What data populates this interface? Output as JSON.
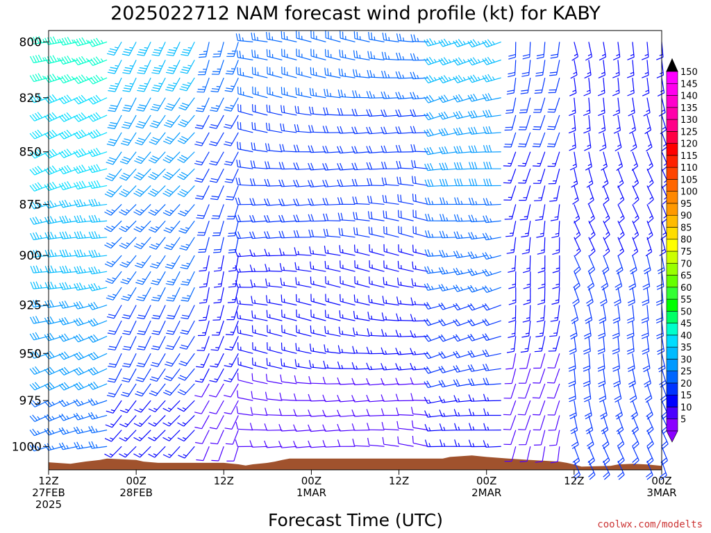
{
  "chart_data": {
    "type": "wind-barb-profile",
    "title": "2025022712 NAM forecast wind profile (kt) for KABY",
    "xlabel": "Forecast Time (UTC)",
    "ylabel": "",
    "y_axis": {
      "scale": "pressure-reversed",
      "range_hpa": [
        1013,
        795
      ],
      "ticks": [
        "800",
        "825",
        "850",
        "875",
        "900",
        "925",
        "950",
        "975",
        "1000"
      ]
    },
    "x_axis": {
      "range_hours": [
        0,
        84
      ],
      "ticks": [
        {
          "hour": 0,
          "lines": [
            "12Z",
            "27FEB",
            "2025"
          ]
        },
        {
          "hour": 12,
          "lines": [
            "00Z",
            "28FEB"
          ]
        },
        {
          "hour": 24,
          "lines": [
            "12Z"
          ]
        },
        {
          "hour": 36,
          "lines": [
            "00Z",
            "1MAR"
          ]
        },
        {
          "hour": 48,
          "lines": [
            "12Z"
          ]
        },
        {
          "hour": 60,
          "lines": [
            "00Z",
            "2MAR"
          ]
        },
        {
          "hour": 72,
          "lines": [
            "12Z"
          ]
        },
        {
          "hour": 84,
          "lines": [
            "00Z",
            "3MAR"
          ]
        }
      ]
    },
    "barb_levels_hpa": [
      800,
      808,
      816,
      825,
      833,
      841,
      850,
      858,
      866,
      875,
      883,
      891,
      900,
      908,
      916,
      925,
      933,
      941,
      950,
      958,
      966,
      975,
      983,
      991,
      1000,
      1008
    ],
    "barb_times_hours": [
      0,
      2,
      4,
      6,
      8,
      10,
      12,
      14,
      16,
      18,
      20,
      22,
      24,
      26,
      28,
      30,
      32,
      34,
      36,
      38,
      40,
      42,
      44,
      46,
      48,
      50,
      52,
      54,
      56,
      58,
      60,
      62,
      64,
      66,
      68,
      70,
      72,
      74,
      76,
      78,
      80,
      82,
      84
    ],
    "wind_regimes": [
      {
        "hours": [
          0,
          10
        ],
        "direction_deg": 255,
        "speed_kt_top": 45,
        "speed_kt_bottom": 25
      },
      {
        "hours": [
          10,
          22
        ],
        "direction_deg": 215,
        "speed_kt_top": 35,
        "speed_kt_bottom": 15
      },
      {
        "hours": [
          22,
          28
        ],
        "direction_deg": 200,
        "speed_kt_top": 25,
        "speed_kt_bottom": 10
      },
      {
        "hours": [
          28,
          54
        ],
        "direction_deg": 275,
        "speed_kt_top": 25,
        "speed_kt_bottom": 10
      },
      {
        "hours": [
          54,
          64
        ],
        "direction_deg": 260,
        "speed_kt_top": 35,
        "speed_kt_bottom": 15
      },
      {
        "hours": [
          64,
          72
        ],
        "direction_deg": 190,
        "speed_kt_top": 20,
        "speed_kt_bottom": 10
      },
      {
        "hours": [
          72,
          84
        ],
        "direction_deg": 165,
        "speed_kt_top": 15,
        "speed_kt_bottom": 20
      }
    ],
    "surface_pressure_hpa": [
      [
        0,
        1008.8
      ],
      [
        3,
        1009.6
      ],
      [
        5,
        1008.4
      ],
      [
        7,
        1007.5
      ],
      [
        8,
        1006.7
      ],
      [
        12,
        1007.5
      ],
      [
        13,
        1008.4
      ],
      [
        15,
        1009.1
      ],
      [
        24,
        1009.1
      ],
      [
        26,
        1009.9
      ],
      [
        27,
        1010.6
      ],
      [
        28,
        1009.9
      ],
      [
        30,
        1009.1
      ],
      [
        31,
        1008.4
      ],
      [
        32,
        1007.5
      ],
      [
        33,
        1006.7
      ],
      [
        36,
        1006.7
      ],
      [
        54,
        1006.7
      ],
      [
        55,
        1005.8
      ],
      [
        58,
        1005.0
      ],
      [
        60,
        1005.8
      ],
      [
        63,
        1006.7
      ],
      [
        66,
        1007.5
      ],
      [
        70,
        1008.4
      ],
      [
        71,
        1009.1
      ],
      [
        72,
        1010.0
      ],
      [
        73,
        1011.2
      ],
      [
        77,
        1010.8
      ],
      [
        78,
        1010.0
      ],
      [
        80,
        1009.6
      ],
      [
        82,
        1010.0
      ],
      [
        84,
        1010.8
      ]
    ],
    "terrain_color": "#a0522d",
    "colorbar": {
      "labels": [
        "5",
        "10",
        "15",
        "20",
        "25",
        "30",
        "35",
        "40",
        "45",
        "50",
        "55",
        "60",
        "65",
        "70",
        "75",
        "80",
        "85",
        "90",
        "95",
        "100",
        "105",
        "110",
        "115",
        "120",
        "125",
        "130",
        "135",
        "140",
        "145",
        "150"
      ],
      "colors": [
        "#8b00ff",
        "#4b00ff",
        "#0000ff",
        "#0033ff",
        "#0066ff",
        "#0099ff",
        "#00bbff",
        "#00ddff",
        "#00ffcc",
        "#00ff66",
        "#00ff00",
        "#33ff33",
        "#66ff00",
        "#99ff00",
        "#ccff00",
        "#ffff00",
        "#ffdd00",
        "#ffbb00",
        "#ff9900",
        "#ff8800",
        "#ff6600",
        "#ff4400",
        "#ff2200",
        "#ff0000",
        "#ff0044",
        "#ff0088",
        "#ff00aa",
        "#ff00cc",
        "#ff00ee",
        "#ff00ff"
      ]
    }
  },
  "credit": "coolwx.com/modelts"
}
